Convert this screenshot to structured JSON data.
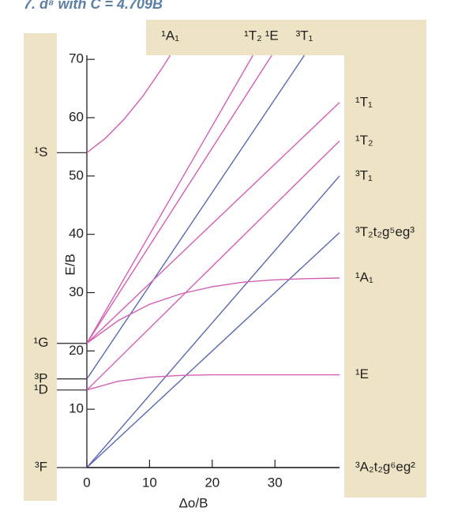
{
  "chart_data": {
    "type": "line",
    "title": "7. d⁸ with C = 4.709B",
    "x_label": "Δo/B",
    "y_label": "E/B",
    "xlim": [
      0,
      40.3
    ],
    "ylim": [
      0,
      70.7
    ],
    "xticks": [
      0,
      10,
      20,
      30
    ],
    "yticks": [
      10,
      20,
      30,
      40,
      50,
      60,
      70
    ],
    "terms": [
      {
        "label": "¹S",
        "value": 54
      },
      {
        "label": "¹G",
        "value": 21.3
      },
      {
        "label": "³P",
        "value": 15.2
      },
      {
        "label": "¹D",
        "value": 13.3
      },
      {
        "label": "³F",
        "value": 0
      }
    ],
    "series": [
      {
        "name": "¹A₁",
        "color": "#d35fb4",
        "x": [
          0,
          3,
          6,
          9,
          12,
          13.3
        ],
        "values": [
          54,
          56.5,
          59.8,
          63.8,
          68.5,
          70.7
        ]
      },
      {
        "name": "¹T₂",
        "color": "#d35fb4",
        "x": [
          0,
          26.5
        ],
        "values": [
          21.3,
          70.7
        ]
      },
      {
        "name": "¹E",
        "color": "#d35fb4",
        "x": [
          0,
          29.5
        ],
        "values": [
          21.3,
          70.7
        ]
      },
      {
        "name": "³T₁",
        "color": "#5a68b4",
        "x": [
          0,
          34.7
        ],
        "values": [
          15.2,
          70.7
        ]
      },
      {
        "name": "¹T₁",
        "color": "#d35fb4",
        "x": [
          0,
          40.3
        ],
        "values": [
          21.3,
          62.6
        ]
      },
      {
        "name": "¹T₂",
        "color": "#d35fb4",
        "x": [
          0,
          40.3
        ],
        "values": [
          13.3,
          56
        ]
      },
      {
        "name": "³T₁",
        "color": "#5a68b4",
        "x": [
          0,
          40.3
        ],
        "values": [
          0,
          50
        ]
      },
      {
        "name": "³T₂t₂g⁵eg³",
        "color": "#5a68b4",
        "x": [
          0,
          40.3
        ],
        "values": [
          0,
          40.3
        ]
      },
      {
        "name": "¹A₁",
        "color": "#d35fb4",
        "x": [
          0,
          5,
          10,
          15,
          20,
          25,
          30,
          35,
          40.3
        ],
        "values": [
          21.3,
          25.2,
          28,
          29.8,
          31,
          31.8,
          32.2,
          32.4,
          32.5
        ]
      },
      {
        "name": "¹E",
        "color": "#d35fb4",
        "x": [
          0,
          5,
          10,
          15,
          20,
          25,
          30,
          35,
          40.3
        ],
        "values": [
          13.3,
          14.8,
          15.5,
          15.8,
          15.9,
          15.9,
          15.9,
          15.9,
          15.9
        ]
      },
      {
        "name": "³A₂t₂g⁶eg²",
        "color": "#222222",
        "x": [
          0,
          40.3
        ],
        "values": [
          0,
          0
        ]
      }
    ]
  }
}
